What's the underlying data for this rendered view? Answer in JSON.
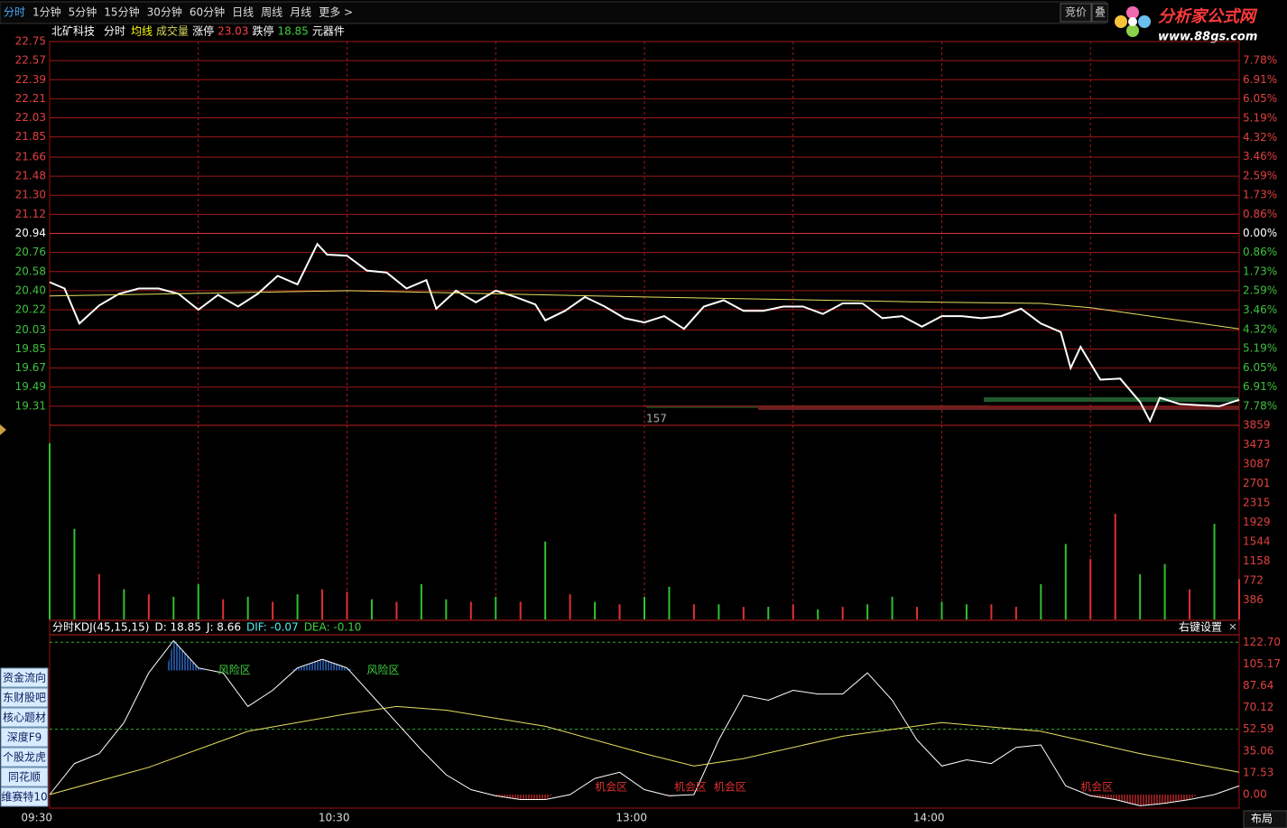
{
  "toolbar": {
    "tabs": [
      "分时",
      "1分钟",
      "5分钟",
      "15分钟",
      "30分钟",
      "60分钟",
      "日线",
      "周线",
      "月线",
      "更多 >"
    ],
    "right": [
      "竞价",
      "叠"
    ]
  },
  "logo": {
    "title": "分析家公式网",
    "url": "www.88gs.com"
  },
  "info": {
    "stock": "北矿科技",
    "items": [
      {
        "text": "分时",
        "color": "#ffffff"
      },
      {
        "text": "均线",
        "color": "#ffff00"
      },
      {
        "text": "成交量",
        "color": "#d8d860"
      },
      {
        "text": "涨停",
        "color": "#ffffff"
      },
      {
        "text": "23.03",
        "color": "#ff4040"
      },
      {
        "text": "跌停",
        "color": "#ffffff"
      },
      {
        "text": "18.85",
        "color": "#40d040"
      },
      {
        "text": "元器件",
        "color": "#ffffff"
      }
    ]
  },
  "order_label": "157",
  "sidebar": [
    "资金流向",
    "东财股吧",
    "核心题材",
    "深度F9",
    "个股龙虎",
    "同花顺",
    "维赛特10"
  ],
  "corner": "布局",
  "panel_settings": "右键设置",
  "chart_data": [
    {
      "type": "line",
      "prev_close": 20.94,
      "grid": true,
      "ytick_side": "left",
      "xlim": [
        0,
        240
      ],
      "ylim": [
        19.13,
        22.75
      ],
      "y2lim": [
        -8.64,
        8.64
      ],
      "xgrid": [
        30,
        60,
        90,
        120,
        150,
        180,
        210
      ],
      "yticks": [
        22.75,
        22.57,
        22.39,
        22.21,
        22.03,
        21.85,
        21.66,
        21.48,
        {
          "value": 21.3,
          "label": "21.30"
        },
        21.12,
        20.94,
        20.76,
        20.58,
        {
          "value": 20.4,
          "label": "20.40"
        },
        20.22,
        20.03,
        19.85,
        19.67,
        19.49,
        19.31
      ],
      "y2ticks": [
        {
          "value": 7.78,
          "label": "7.78%"
        },
        {
          "value": 6.91,
          "label": "6.91%"
        },
        {
          "value": 6.05,
          "label": "6.05%"
        },
        {
          "value": 5.19,
          "label": "5.19%"
        },
        {
          "value": 4.32,
          "label": "4.32%"
        },
        {
          "value": 3.46,
          "label": "3.46%"
        },
        {
          "value": 2.59,
          "label": "2.59%"
        },
        {
          "value": 1.73,
          "label": "1.73%"
        },
        {
          "value": 0.86,
          "label": "0.86%"
        },
        {
          "value": 0,
          "label": "0.00%"
        },
        {
          "value": -0.86,
          "label": "0.86%"
        },
        {
          "value": -1.73,
          "label": "1.73%"
        },
        {
          "value": -2.59,
          "label": "2.59%"
        },
        {
          "value": -3.46,
          "label": "3.46%"
        },
        {
          "value": -4.32,
          "label": "4.32%"
        },
        {
          "value": -5.19,
          "label": "5.19%"
        },
        {
          "value": -6.05,
          "label": "6.05%"
        },
        {
          "value": -6.91,
          "label": "6.91%"
        },
        {
          "value": -7.78,
          "label": "7.78%"
        }
      ],
      "x": [
        0,
        3,
        6,
        10,
        14,
        18,
        22,
        26,
        30,
        34,
        38,
        42,
        46,
        50,
        54,
        56,
        60,
        64,
        68,
        72,
        76,
        78,
        82,
        86,
        90,
        94,
        98,
        100,
        104,
        108,
        112,
        116,
        120,
        124,
        128,
        132,
        136,
        140,
        144,
        148,
        152,
        156,
        160,
        164,
        168,
        172,
        176,
        180,
        184,
        188,
        192,
        196,
        200,
        204,
        206,
        208,
        212,
        216,
        220,
        222,
        224,
        228,
        232,
        236,
        240
      ],
      "series": [
        {
          "name": "分时",
          "color": "#ffffff",
          "width": 2,
          "values": [
            20.48,
            20.42,
            20.09,
            20.26,
            20.37,
            20.42,
            20.42,
            20.37,
            20.22,
            20.36,
            20.25,
            20.37,
            20.54,
            20.46,
            20.84,
            20.74,
            20.73,
            20.59,
            20.57,
            20.42,
            20.5,
            20.23,
            20.4,
            20.29,
            20.4,
            20.34,
            20.27,
            20.12,
            20.21,
            20.34,
            20.25,
            20.14,
            20.1,
            20.16,
            20.04,
            20.25,
            20.31,
            20.21,
            20.21,
            20.25,
            20.25,
            20.18,
            20.28,
            20.28,
            20.14,
            20.16,
            20.06,
            20.16,
            20.16,
            20.14,
            20.16,
            20.23,
            20.09,
            20.01,
            19.67,
            19.87,
            19.56,
            19.57,
            19.35,
            19.17,
            19.39,
            19.33,
            19.32,
            19.31,
            19.37
          ]
        },
        {
          "name": "均线",
          "color": "#e8e060",
          "width": 1,
          "x": [
            0,
            60,
            120,
            180,
            200,
            210,
            240
          ],
          "values": [
            20.35,
            20.4,
            20.34,
            20.29,
            20.28,
            20.24,
            20.04
          ]
        }
      ]
    },
    {
      "type": "bar",
      "grid": false,
      "ytick_side": "right",
      "xlim": [
        0,
        240
      ],
      "ylim": [
        0,
        3859
      ],
      "xgrid": [
        30,
        60,
        90,
        120,
        150,
        180,
        210
      ],
      "yticks": [
        3859,
        3473,
        3087,
        2701,
        2315,
        1929,
        1544,
        1158,
        772,
        386
      ],
      "x": [
        0,
        5,
        10,
        15,
        20,
        25,
        30,
        35,
        40,
        45,
        50,
        55,
        60,
        65,
        70,
        75,
        80,
        85,
        90,
        95,
        100,
        105,
        110,
        115,
        120,
        125,
        130,
        135,
        140,
        145,
        150,
        155,
        160,
        165,
        170,
        175,
        180,
        185,
        190,
        195,
        200,
        205,
        210,
        215,
        220,
        225,
        230,
        235,
        240
      ],
      "values": [
        3500,
        1800,
        900,
        600,
        500,
        450,
        700,
        400,
        450,
        350,
        500,
        600,
        550,
        400,
        350,
        700,
        400,
        350,
        450,
        350,
        1550,
        500,
        350,
        300,
        450,
        650,
        300,
        300,
        250,
        250,
        300,
        200,
        250,
        300,
        450,
        250,
        350,
        300,
        300,
        250,
        700,
        1500,
        1200,
        2100,
        900,
        1100,
        600,
        1900,
        800
      ],
      "bar_colors": [
        "#30c030",
        "#30c030",
        "#e03030",
        "#30c030",
        "#e03030",
        "#30c030",
        "#30c030",
        "#e03030",
        "#30c030",
        "#e03030",
        "#30c030",
        "#e03030",
        "#e03030",
        "#30c030",
        "#e03030",
        "#30c030",
        "#30c030",
        "#e03030",
        "#30c030",
        "#e03030",
        "#30c030",
        "#e03030",
        "#30c030",
        "#e03030",
        "#30c030",
        "#30c030",
        "#e03030",
        "#30c030",
        "#e03030",
        "#30c030",
        "#e03030",
        "#30c030",
        "#e03030",
        "#30c030",
        "#30c030",
        "#e03030",
        "#30c030",
        "#30c030",
        "#e03030",
        "#e03030",
        "#30c030",
        "#30c030",
        "#e03030",
        "#e03030",
        "#30c030",
        "#30c030",
        "#e03030",
        "#30c030",
        "#e03030"
      ]
    },
    {
      "type": "line",
      "grid": false,
      "ytick_side": "right",
      "xlim": [
        0,
        240
      ],
      "ylim": [
        -10.9,
        128.7
      ],
      "header": [
        {
          "text": "分时KDJ(45,15,15)",
          "color": "#ffffff"
        },
        {
          "text": "D: 18.85",
          "color": "#ffffff"
        },
        {
          "text": "J: 8.66",
          "color": "#ffffff"
        },
        {
          "text": "DIF: -0.07",
          "color": "#50f0f0"
        },
        {
          "text": "DEA: -0.10",
          "color": "#40d040"
        }
      ],
      "yticks": [
        {
          "value": 122.7,
          "label": "122.70"
        },
        105.17,
        87.64,
        70.12,
        52.59,
        35.06,
        17.53,
        {
          "value": 0,
          "label": "0.00"
        }
      ],
      "ref_lines": [
        122.7,
        52.59
      ],
      "xticks": [
        {
          "value": 0,
          "label": "09:30"
        },
        {
          "value": 60,
          "label": "10:30"
        },
        {
          "value": 120,
          "label": "13:00"
        },
        {
          "value": 180,
          "label": "14:00"
        }
      ],
      "x": [
        0,
        5,
        10,
        15,
        20,
        25,
        30,
        35,
        40,
        45,
        50,
        55,
        60,
        65,
        70,
        75,
        80,
        85,
        90,
        95,
        100,
        105,
        110,
        115,
        120,
        125,
        130,
        135,
        140,
        145,
        150,
        155,
        160,
        165,
        170,
        175,
        180,
        185,
        190,
        195,
        200,
        205,
        210,
        215,
        220,
        225,
        230,
        235,
        240
      ],
      "zones": [
        {
          "above": 100,
          "color": "#3a7ff0"
        },
        {
          "below": 0,
          "color": "#e03030"
        }
      ],
      "series": [
        {
          "name": "K",
          "color": "#ffffff",
          "width": 1,
          "values": [
            0,
            25,
            33,
            58,
            98,
            124,
            102,
            98,
            71,
            84,
            102,
            109,
            102,
            80,
            58,
            36,
            16,
            4,
            -1,
            -4,
            -4,
            0,
            13,
            18,
            4,
            -1,
            0,
            44,
            80,
            76,
            84,
            81,
            81,
            98,
            76,
            44,
            23,
            28,
            25,
            38,
            40,
            7,
            -1,
            -4,
            -9,
            -7,
            -4,
            0,
            7
          ]
        },
        {
          "name": "D",
          "color": "#e8e060",
          "width": 1,
          "x": [
            0,
            20,
            40,
            60,
            70,
            80,
            100,
            120,
            130,
            140,
            160,
            180,
            200,
            220,
            240
          ],
          "values": [
            0,
            22,
            51,
            65,
            71,
            68,
            55,
            33,
            23,
            29,
            47,
            58,
            51,
            33,
            18
          ]
        }
      ],
      "annotations": [
        {
          "text": "风险区",
          "x": 34,
          "y": 100,
          "color": "#40d040"
        },
        {
          "text": "风险区",
          "x": 64,
          "y": 100,
          "color": "#40d040"
        },
        {
          "text": "机会区",
          "x": 110,
          "y": 6,
          "color": "#e03030"
        },
        {
          "text": "机会区",
          "x": 126,
          "y": 6,
          "color": "#e03030"
        },
        {
          "text": "机会区",
          "x": 134,
          "y": 6,
          "color": "#e03030"
        },
        {
          "text": "机会区",
          "x": 208,
          "y": 6,
          "color": "#e03030"
        }
      ]
    }
  ]
}
